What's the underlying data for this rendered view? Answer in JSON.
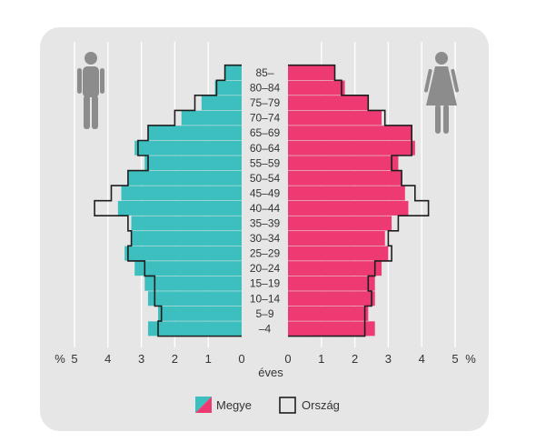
{
  "chart_data": {
    "type": "bar",
    "subtype": "population-pyramid",
    "categories": [
      "85–",
      "80–84",
      "75–79",
      "70–74",
      "65–69",
      "60–64",
      "55–59",
      "50–54",
      "45–49",
      "40–44",
      "35–39",
      "30–34",
      "25–29",
      "20–24",
      "15–19",
      "10–14",
      "5–9",
      "–4"
    ],
    "series": [
      {
        "name": "Megye",
        "side": "male",
        "values": [
          0.5,
          0.8,
          1.2,
          1.8,
          2.8,
          3.2,
          2.9,
          3.4,
          3.6,
          3.7,
          3.3,
          3.3,
          3.5,
          3.2,
          2.9,
          2.8,
          2.5,
          2.8
        ]
      },
      {
        "name": "Megye",
        "side": "female",
        "values": [
          1.4,
          1.7,
          2.4,
          2.8,
          3.7,
          3.8,
          3.3,
          3.4,
          3.5,
          3.6,
          3.1,
          2.9,
          3.0,
          2.8,
          2.6,
          2.6,
          2.4,
          2.6
        ]
      },
      {
        "name": "Ország",
        "side": "male",
        "values": [
          0.5,
          0.75,
          1.4,
          2.0,
          2.8,
          3.1,
          2.8,
          3.4,
          3.9,
          4.4,
          3.4,
          3.3,
          3.4,
          2.9,
          2.6,
          2.6,
          2.4,
          2.5
        ]
      },
      {
        "name": "Ország",
        "side": "female",
        "values": [
          1.4,
          1.6,
          2.4,
          2.9,
          3.7,
          3.7,
          3.1,
          3.4,
          3.8,
          4.2,
          3.3,
          3.0,
          3.1,
          2.6,
          2.4,
          2.5,
          2.3,
          2.3
        ]
      }
    ],
    "x_ticks": [
      "0",
      "1",
      "2",
      "3",
      "4",
      "5"
    ],
    "xlim": [
      0,
      5
    ],
    "unit_left": "%",
    "unit_right": "%",
    "xlabel": "éves",
    "legend": [
      "Megye",
      "Ország"
    ],
    "colors": {
      "male": "#3dbfbf",
      "female": "#ee3a72",
      "outline": "#1e1e1e",
      "grid": "#ffffff",
      "panel": "#e6e6e6",
      "icon": "#8c8c8c"
    },
    "grid": true,
    "legend_position": "bottom-center"
  }
}
